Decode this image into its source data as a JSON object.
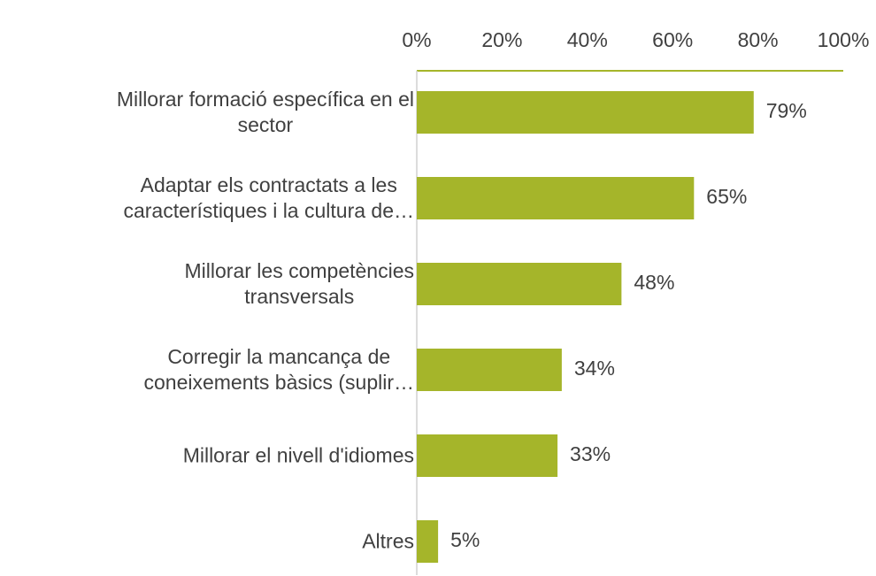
{
  "chart_data": {
    "type": "bar",
    "orientation": "horizontal",
    "categories": [
      "Millorar formació específica en el\nsector",
      "Adaptar els contractats a les\ncaracterístiques i la cultura de…",
      "Millorar les competències\ntransversals",
      "Corregir la mancança de\nconeixements bàsics (suplir…",
      "Millorar el nivell d'idiomes",
      "Altres"
    ],
    "values": [
      79,
      65,
      48,
      34,
      33,
      5
    ],
    "value_labels": [
      "79%",
      "65%",
      "48%",
      "34%",
      "33%",
      "5%"
    ],
    "color": "#a5b52a",
    "xlim": [
      0,
      100
    ],
    "xticks": [
      {
        "value": 0,
        "label": "0%"
      },
      {
        "value": 20,
        "label": "20%"
      },
      {
        "value": 40,
        "label": "40%"
      },
      {
        "value": 60,
        "label": "60%"
      },
      {
        "value": 80,
        "label": "80%"
      },
      {
        "value": 100,
        "label": "100%"
      }
    ]
  }
}
